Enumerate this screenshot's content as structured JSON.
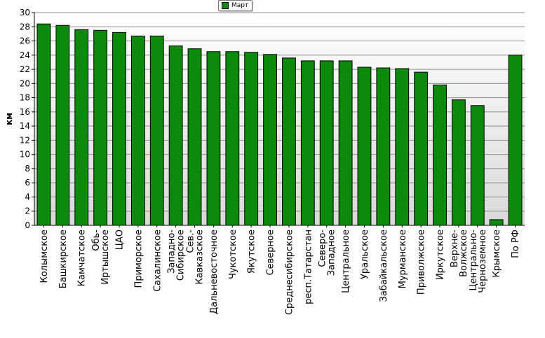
{
  "chart_data": {
    "type": "bar",
    "categories": [
      "Колымское",
      "Башкирское",
      "Камчатское",
      "Обь-Иртышское",
      "ЦАО",
      "Приморское",
      "Сахалинское",
      "Западно-Сибирское",
      "Сев.-Кавказское",
      "Дальневосточное",
      "Чукотское",
      "Якутское",
      "Северное",
      "Среднесибирское",
      "респ.Татарстан",
      "Северо-Западное",
      "Центральное",
      "Уральское",
      "Забайкальское",
      "Мурманское",
      "Приволжское",
      "Иркутское",
      "Верхне-Волжское",
      "Центрально-Черноземное",
      "Крымское",
      "По РФ"
    ],
    "label_lines": [
      [
        "Колымское"
      ],
      [
        "Башкирское"
      ],
      [
        "Камчатское"
      ],
      [
        "Обь-",
        "Иртышское"
      ],
      [
        "ЦАО"
      ],
      [
        "Приморское"
      ],
      [
        "Сахалинское"
      ],
      [
        "Западно-",
        "Сибирское"
      ],
      [
        "Сев.-",
        "Кавказское"
      ],
      [
        "Дальневосточное"
      ],
      [
        "Чукотское"
      ],
      [
        "Якутское"
      ],
      [
        "Северное"
      ],
      [
        "Среднесибирское"
      ],
      [
        "респ.Татарстан"
      ],
      [
        "Северо-",
        "Западное"
      ],
      [
        "Центральное"
      ],
      [
        "Уральское"
      ],
      [
        "Забайкальское"
      ],
      [
        "Мурманское"
      ],
      [
        "Приволжское"
      ],
      [
        "Иркутское"
      ],
      [
        "Верхне-",
        "Волжское"
      ],
      [
        "Центрально-",
        "Черноземное"
      ],
      [
        "Крымское"
      ],
      [
        "По РФ"
      ]
    ],
    "series": [
      {
        "name": "Март",
        "values": [
          28.4,
          28.2,
          27.6,
          27.5,
          27.2,
          26.7,
          26.7,
          25.3,
          24.9,
          24.5,
          24.5,
          24.4,
          24.1,
          23.6,
          23.2,
          23.2,
          23.2,
          22.3,
          22.2,
          22.1,
          21.6,
          19.8,
          17.7,
          16.9,
          0.8,
          24.0
        ]
      }
    ],
    "ylabel": "км",
    "xlabel": "",
    "ylim": [
      0,
      30
    ],
    "yticks": [
      0,
      2,
      4,
      6,
      8,
      10,
      12,
      14,
      16,
      18,
      20,
      22,
      24,
      26,
      28,
      30
    ],
    "grid": true,
    "legend_position": "top-center",
    "colors": {
      "bar": "#0b8a0b",
      "bar_edge": "#000000",
      "plot_bg_top": "#ffffff",
      "plot_bg_bottom": "#d9d9d9",
      "grid": "#8c8c8c"
    }
  }
}
